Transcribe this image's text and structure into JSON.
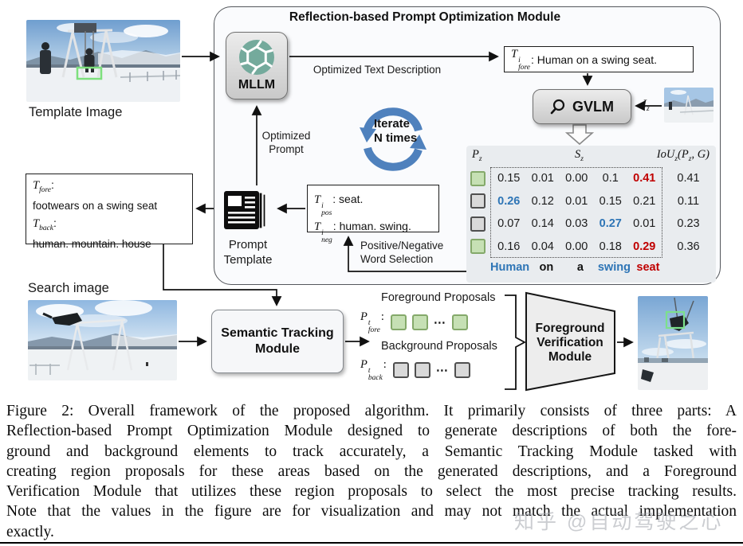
{
  "colors": {
    "red": "#c00000",
    "blue": "#2e75b6",
    "green_fill": "#c6e0b4",
    "green_border": "#84a96a",
    "gray_fill": "#d9d9d9",
    "gray_border": "#4f4f4f",
    "iterate_blue": "#4f81bd",
    "openai_teal": "#74aa9c"
  },
  "figure": {
    "template_image_label": "Template Image",
    "search_image_label": "Search image",
    "module": {
      "title": "Reflection-based Prompt Optimization Module",
      "mllm_label": "MLLM",
      "optimized_text_description": "Optimized Text Description",
      "fore_box": {
        "base": "T",
        "sup": "i",
        "sub": "fore",
        "tail": ": Human on a swing seat."
      },
      "gvlm_label": "GVLM",
      "iz": {
        "base": "I",
        "sub": "z"
      },
      "iterate": {
        "line1": "Iterate",
        "line2": "N times"
      },
      "optimized_prompt": {
        "line1": "Optimized",
        "line2": "Prompt"
      },
      "prompt_template": {
        "line1": "Prompt",
        "line2": "Template"
      },
      "pos": {
        "base": "T",
        "sup": "i",
        "sub": "pos",
        "tail": ": seat."
      },
      "neg": {
        "base": "T",
        "sup": "i",
        "sub": "neg",
        "tail": ": human. swing."
      },
      "word_selection": {
        "line1": "Positive/Negative",
        "line2": "Word Selection"
      }
    },
    "left_box": {
      "fore_base": "T",
      "fore_sub": "fore",
      "fore_colon": ":",
      "fore_text": "footwears on a swing seat",
      "back_base": "T",
      "back_sub": "back",
      "back_colon": ":",
      "back_text": "human. mountain. house"
    },
    "tracking": {
      "line1": "Semantic Tracking",
      "line2": "Module"
    },
    "proposals": {
      "fore_label": "Foreground Proposals",
      "fore_base": "P",
      "fore_sup": "t",
      "fore_sub": "fore",
      "fore_colon": ":",
      "back_label": "Background Proposals",
      "back_base": "P",
      "back_sup": "t",
      "back_sub": "back",
      "back_colon": ":",
      "dots": "⋯"
    },
    "verification": {
      "line1": "Foreground",
      "line2": "Verification",
      "line3": "Module"
    }
  },
  "gvlm_table": {
    "header_p": {
      "base": "P",
      "sub": "z"
    },
    "header_s": {
      "base": "S",
      "sub": "z"
    },
    "header_iou": {
      "fn": "IoU",
      "sub": "z",
      "arg_base": "(P",
      "arg_sub": "z",
      "arg_tail": ", G)"
    },
    "rows": [
      {
        "proposal": "green",
        "values": [
          "0.15",
          "0.01",
          "0.00",
          "0.1",
          "0.41"
        ],
        "styles": [
          null,
          null,
          null,
          null,
          "red"
        ],
        "iou": "0.41"
      },
      {
        "proposal": "gray",
        "values": [
          "0.26",
          "0.12",
          "0.01",
          "0.15",
          "0.21"
        ],
        "styles": [
          "blue",
          null,
          null,
          null,
          null
        ],
        "iou": "0.11"
      },
      {
        "proposal": "gray",
        "values": [
          "0.07",
          "0.14",
          "0.03",
          "0.27",
          "0.01"
        ],
        "styles": [
          null,
          null,
          null,
          "blue",
          null
        ],
        "iou": "0.23"
      },
      {
        "proposal": "green",
        "values": [
          "0.16",
          "0.04",
          "0.00",
          "0.18",
          "0.29"
        ],
        "styles": [
          null,
          null,
          null,
          null,
          "red"
        ],
        "iou": "0.36"
      }
    ],
    "sentence": [
      {
        "text": "Human",
        "color": "blue"
      },
      {
        "text": "on",
        "color": "black"
      },
      {
        "text": "a",
        "color": "black"
      },
      {
        "text": "swing",
        "color": "blue"
      },
      {
        "text": "seat",
        "color": "red"
      }
    ]
  },
  "caption": {
    "lines": [
      "Figure 2: Overall framework of the proposed algorithm. It primarily consists of three parts: A",
      "Reflection-based Prompt Optimization Module designed to generate descriptions of both the fore-",
      "ground and background elements to track accurately, a Semantic Tracking Module tasked with",
      "creating region proposals for these areas based on the generated descriptions, and a Foreground",
      "Verification Module that utilizes these region proposals to select the most precise tracking results.",
      "Note that the values in the figure are for visualization and may not match the actual implementation",
      "exactly."
    ]
  },
  "watermark": "知乎 @自动驾驶之心"
}
